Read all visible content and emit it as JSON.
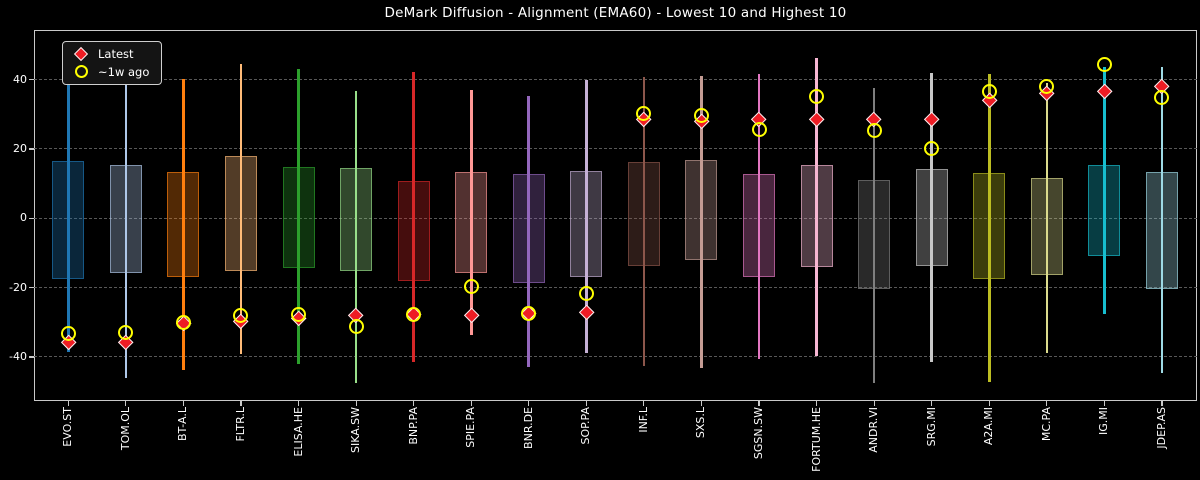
{
  "title": "DeMark Diffusion - Alignment (EMA60) - Lowest 10 and Highest 10",
  "legend": {
    "items": [
      {
        "label": "Latest",
        "marker": "red-diamond"
      },
      {
        "label": "~1w ago",
        "marker": "yellow-circle"
      }
    ]
  },
  "colors": {
    "background": "#000000",
    "text": "#ffffff",
    "grid": "#585858",
    "spine": "#c9c9c9",
    "latest_marker": "#ee1c24",
    "latest_marker_edge": "#f5f5f5",
    "week_ago_marker": "#ffff00"
  },
  "chart_data": {
    "type": "bar",
    "subtype": "range-box-plot-with-markers",
    "title": "DeMark Diffusion - Alignment (EMA60) - Lowest 10 and Highest 10",
    "xlabel": "",
    "ylabel": "",
    "ylim": [
      -52.7,
      54.3
    ],
    "yticks": [
      40,
      20,
      0,
      -20,
      -40
    ],
    "grid": "horizontal-dashed",
    "legend_position": "upper-left",
    "categories": [
      "EVO.ST",
      "TOM.OL",
      "BT-A.L",
      "FLTR.L",
      "ELISA.HE",
      "SIKA.SW",
      "BNP.PA",
      "SPIE.PA",
      "BNR.DE",
      "SOP.PA",
      "INF.L",
      "SXS.L",
      "SGSN.SW",
      "FORTUM.HE",
      "ANDR.VI",
      "SRG.MI",
      "A2A.MI",
      "MC.PA",
      "IG.MI",
      "JDEP.AS"
    ],
    "bar_colors": [
      "#1f77b4",
      "#aec7e8",
      "#ff7f0e",
      "#ffbb78",
      "#2ca02c",
      "#98df8a",
      "#d62728",
      "#ff9896",
      "#9467bd",
      "#c5b0d5",
      "#8c564b",
      "#c49c94",
      "#e377c2",
      "#f7b6d2",
      "#7f7f7f",
      "#c7c7c7",
      "#bcbd22",
      "#dbdb8d",
      "#17becf",
      "#9edae5"
    ],
    "series": [
      {
        "name": "range_high",
        "values": [
          48.8,
          45.8,
          40.2,
          44.6,
          43.0,
          36.7,
          42.3,
          36.9,
          35.4,
          40.0,
          40.7,
          41.0,
          41.6,
          46.1,
          37.5,
          41.9,
          41.5,
          38.9,
          43.5,
          43.7
        ]
      },
      {
        "name": "range_low",
        "values": [
          -38.5,
          -46.2,
          -43.8,
          -39.1,
          -41.9,
          -47.4,
          -41.4,
          -33.7,
          -43.0,
          -38.9,
          -42.6,
          -43.1,
          -40.7,
          -39.6,
          -47.4,
          -41.5,
          -47.3,
          -38.9,
          -27.6,
          -44.6
        ]
      },
      {
        "name": "box_high",
        "values": [
          16.4,
          15.3,
          13.4,
          17.9,
          14.8,
          14.6,
          10.8,
          13.4,
          12.9,
          13.7,
          16.3,
          16.8,
          12.9,
          15.5,
          11.0,
          14.1,
          13.1,
          11.5,
          15.5,
          13.4
        ]
      },
      {
        "name": "box_low",
        "values": [
          -17.6,
          -15.7,
          -16.9,
          -15.2,
          -14.3,
          -15.2,
          -18.0,
          -15.9,
          -18.6,
          -16.9,
          -13.8,
          -12.0,
          -17.0,
          -14.0,
          -20.3,
          -13.7,
          -17.4,
          -16.5,
          -10.9,
          -20.5
        ]
      },
      {
        "name": "latest",
        "values": [
          -36.0,
          -35.9,
          -30.5,
          -29.8,
          -28.9,
          -28.2,
          -27.9,
          -28.0,
          -27.4,
          -27.3,
          28.3,
          27.8,
          28.5,
          28.3,
          28.5,
          28.5,
          33.9,
          35.8,
          36.5,
          37.9
        ]
      },
      {
        "name": "week_ago",
        "values": [
          -33.3,
          -33.0,
          -30.2,
          -28.1,
          -27.7,
          -31.3,
          -27.7,
          -19.6,
          -27.4,
          -21.6,
          30.2,
          29.5,
          25.6,
          35.2,
          25.4,
          20.1,
          36.7,
          38.1,
          44.4,
          34.8
        ]
      }
    ]
  }
}
